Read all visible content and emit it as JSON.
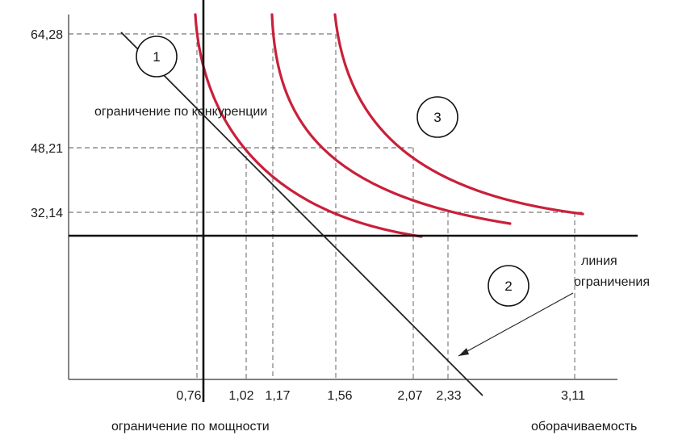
{
  "diagram": {
    "y_ticks": [
      "64,28",
      "48,21",
      "32,14"
    ],
    "x_ticks": [
      "0,76",
      "1,02",
      "1,17",
      "1,56",
      "2,07",
      "2,33",
      "3,11"
    ],
    "labels": {
      "competition_constraint": "ограничение по конкуренции",
      "capacity_constraint": "ограничение по мощности",
      "turnover": "оборачиваемость",
      "constraint_line_1": "линия",
      "constraint_line_2": "ограничения"
    },
    "circles": [
      "1",
      "2",
      "3"
    ],
    "colors": {
      "curve": "#c9203a",
      "lines": "#111111"
    }
  }
}
